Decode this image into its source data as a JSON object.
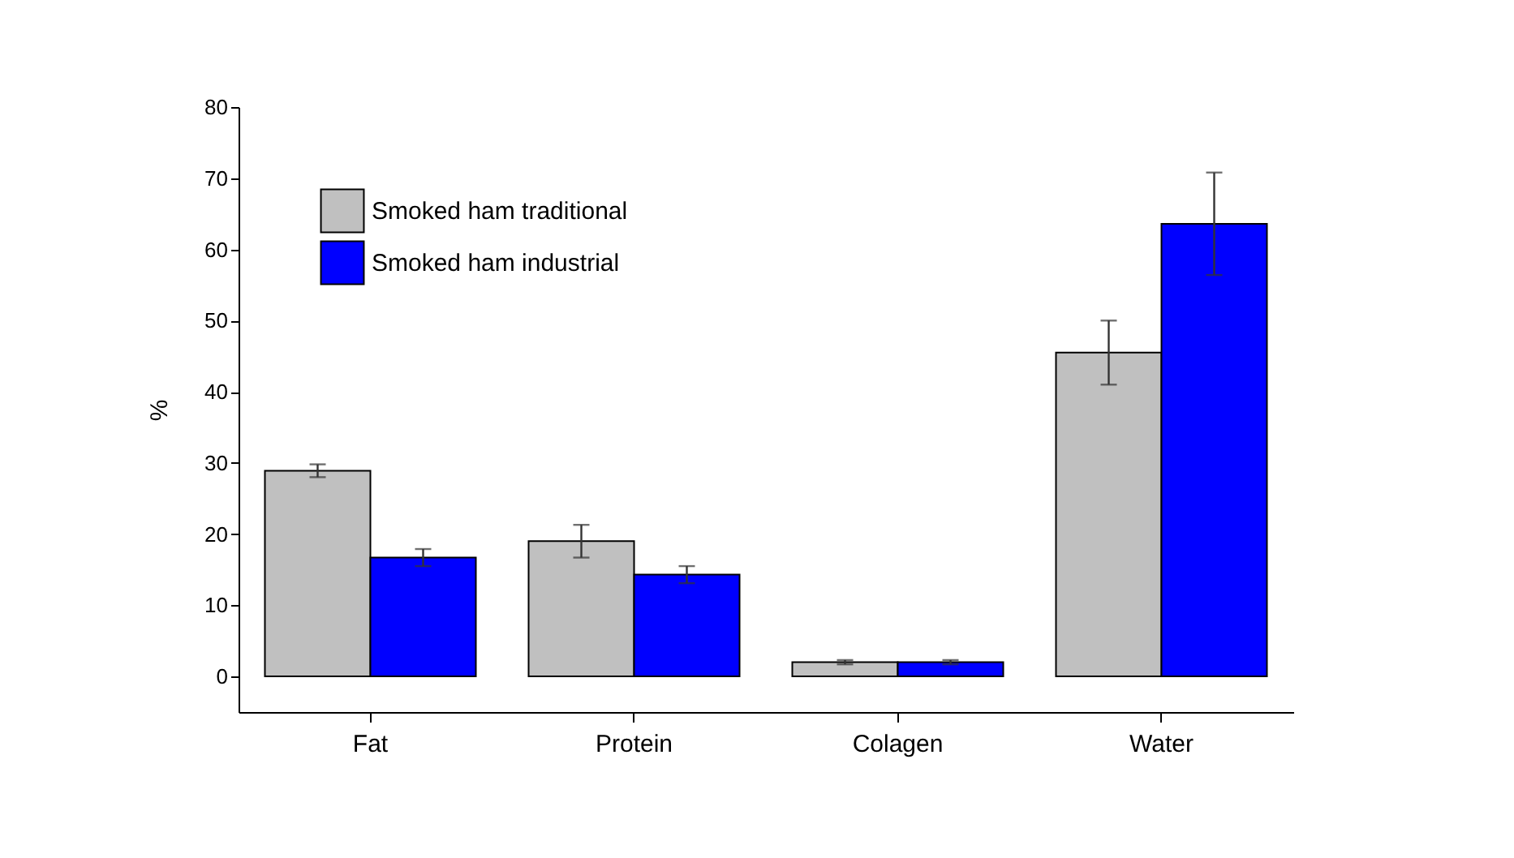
{
  "chart_data": {
    "type": "bar",
    "ylabel": "%",
    "categories": [
      "Fat",
      "Protein",
      "Colagen",
      "Water"
    ],
    "series": [
      {
        "name": "Smoked ham traditional",
        "color": "#c0c0c0",
        "values": [
          28.9,
          19.0,
          2.0,
          45.5
        ],
        "errors": [
          0.9,
          2.3,
          0.3,
          4.5
        ]
      },
      {
        "name": "Smoked ham industrial",
        "color": "#0000ff",
        "values": [
          16.7,
          14.3,
          2.0,
          63.6
        ],
        "errors": [
          1.2,
          1.2,
          0.3,
          7.2
        ]
      }
    ],
    "ylim": [
      -5,
      80
    ],
    "yticks": [
      0,
      10,
      20,
      30,
      40,
      50,
      60,
      70,
      80
    ],
    "grid": false,
    "legend": "top left"
  }
}
